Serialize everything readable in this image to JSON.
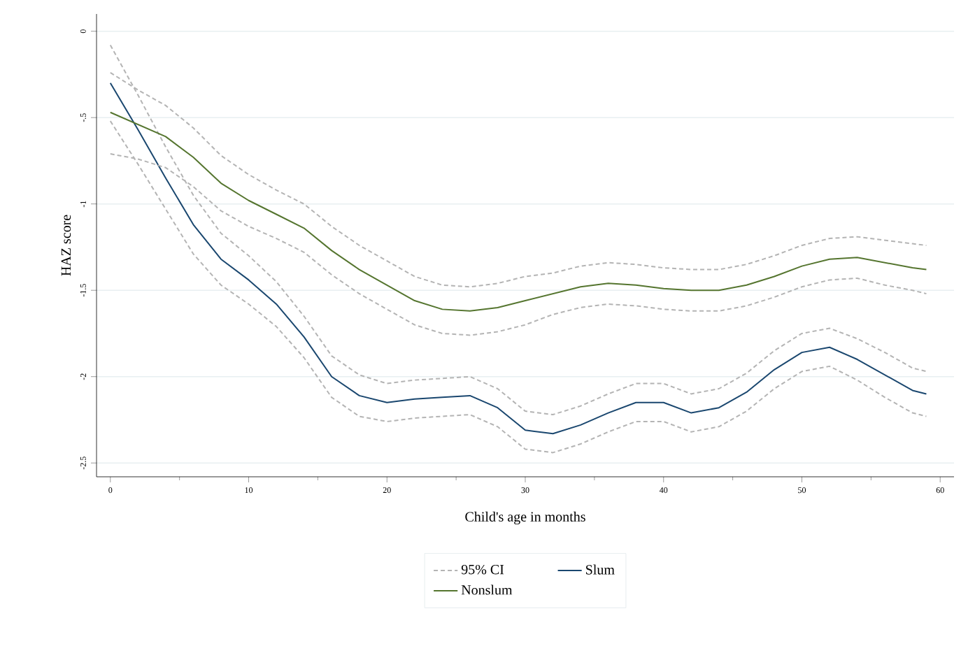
{
  "chart_data": {
    "type": "line",
    "xlabel": "Child's age in months",
    "ylabel": "HAZ score",
    "xlim": [
      -1,
      61
    ],
    "ylim": [
      -2.58,
      0.1
    ],
    "xticks": [
      0,
      {
        "value": 5,
        "label": null
      },
      10,
      {
        "value": 15,
        "label": null
      },
      20,
      {
        "value": 25,
        "label": null
      },
      30,
      {
        "value": 35,
        "label": null
      },
      40,
      {
        "value": 45,
        "label": null
      },
      50,
      {
        "value": 55,
        "label": null
      },
      60
    ],
    "yticks": [
      0,
      {
        "value": -0.5,
        "label": "-.5"
      },
      {
        "value": -1,
        "label": "-1"
      },
      {
        "value": -1.5,
        "label": "-1.5"
      },
      {
        "value": -2,
        "label": "-2"
      },
      {
        "value": -2.5,
        "label": "-2.5"
      }
    ],
    "grid": "y",
    "legend": "bottom",
    "x": [
      0,
      2,
      4,
      6,
      8,
      10,
      12,
      14,
      16,
      18,
      20,
      22,
      24,
      26,
      28,
      30,
      32,
      34,
      36,
      38,
      40,
      42,
      44,
      46,
      48,
      50,
      52,
      54,
      56,
      58,
      59
    ],
    "series": [
      {
        "name": "95% CI",
        "color": "#b4b4b4",
        "line_style": "dashed",
        "values": [
          -0.08,
          -0.37,
          -0.67,
          -0.95,
          -1.17,
          -1.3,
          -1.45,
          -1.65,
          -1.88,
          -1.99,
          -2.04,
          -2.02,
          -2.01,
          -2.0,
          -2.07,
          -2.2,
          -2.22,
          -2.17,
          -2.1,
          -2.04,
          -2.04,
          -2.1,
          -2.07,
          -1.98,
          -1.85,
          -1.75,
          -1.72,
          -1.78,
          -1.86,
          -1.95,
          -1.97
        ]
      },
      {
        "name": "Slum",
        "color": "#1a476f",
        "line_style": "solid",
        "values": [
          -0.3,
          -0.57,
          -0.85,
          -1.12,
          -1.32,
          -1.44,
          -1.58,
          -1.77,
          -2.0,
          -2.11,
          -2.15,
          -2.13,
          -2.12,
          -2.11,
          -2.18,
          -2.31,
          -2.33,
          -2.28,
          -2.21,
          -2.15,
          -2.15,
          -2.21,
          -2.18,
          -2.09,
          -1.96,
          -1.86,
          -1.83,
          -1.9,
          -1.99,
          -2.08,
          -2.1
        ]
      },
      {
        "name": "Nonslum",
        "color": "#55752f",
        "line_style": "solid",
        "values": [
          -0.47,
          -0.54,
          -0.61,
          -0.73,
          -0.88,
          -0.98,
          -1.06,
          -1.14,
          -1.27,
          -1.38,
          -1.47,
          -1.56,
          -1.61,
          -1.62,
          -1.6,
          -1.56,
          -1.52,
          -1.48,
          -1.46,
          -1.47,
          -1.49,
          -1.5,
          -1.5,
          -1.47,
          -1.42,
          -1.36,
          -1.32,
          -1.31,
          -1.34,
          -1.37,
          -1.38
        ]
      },
      {
        "color": "#b4b4b4",
        "line_style": "dashed",
        "values": [
          -0.52,
          -0.77,
          -1.03,
          -1.29,
          -1.47,
          -1.58,
          -1.71,
          -1.89,
          -2.12,
          -2.23,
          -2.26,
          -2.24,
          -2.23,
          -2.22,
          -2.29,
          -2.42,
          -2.44,
          -2.39,
          -2.32,
          -2.26,
          -2.26,
          -2.32,
          -2.29,
          -2.2,
          -2.07,
          -1.97,
          -1.94,
          -2.02,
          -2.12,
          -2.21,
          -2.23
        ]
      },
      {
        "color": "#b4b4b4",
        "line_style": "dashed",
        "values": [
          -0.24,
          -0.34,
          -0.43,
          -0.56,
          -0.72,
          -0.83,
          -0.92,
          -1.0,
          -1.13,
          -1.24,
          -1.33,
          -1.42,
          -1.47,
          -1.48,
          -1.46,
          -1.42,
          -1.4,
          -1.36,
          -1.34,
          -1.35,
          -1.37,
          -1.38,
          -1.38,
          -1.35,
          -1.3,
          -1.24,
          -1.2,
          -1.19,
          -1.21,
          -1.23,
          -1.24
        ]
      },
      {
        "color": "#b4b4b4",
        "line_style": "dashed",
        "values": [
          -0.71,
          -0.74,
          -0.79,
          -0.9,
          -1.04,
          -1.13,
          -1.2,
          -1.28,
          -1.41,
          -1.52,
          -1.61,
          -1.7,
          -1.75,
          -1.76,
          -1.74,
          -1.7,
          -1.64,
          -1.6,
          -1.58,
          -1.59,
          -1.61,
          -1.62,
          -1.62,
          -1.59,
          -1.54,
          -1.48,
          -1.44,
          -1.43,
          -1.47,
          -1.5,
          -1.52
        ]
      }
    ]
  }
}
